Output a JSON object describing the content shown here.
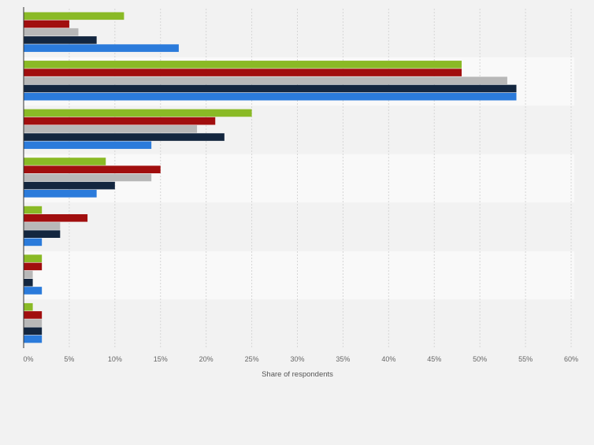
{
  "chart_data": {
    "type": "bar",
    "orientation": "horizontal",
    "xlabel": "Share of respondents",
    "xlim": [
      0,
      60
    ],
    "x_ticks": [
      "0%",
      "5%",
      "10%",
      "15%",
      "20%",
      "25%",
      "30%",
      "35%",
      "40%",
      "45%",
      "50%",
      "55%",
      "60%"
    ],
    "category_labels_visible": false,
    "groups": 7,
    "series": [
      {
        "color": "#8aba26",
        "values": [
          11,
          48,
          25,
          9,
          2,
          2,
          1
        ]
      },
      {
        "color": "#a10e0e",
        "values": [
          5,
          48,
          21,
          15,
          7,
          2,
          2
        ]
      },
      {
        "color": "#b8b8b8",
        "values": [
          6,
          53,
          19,
          14,
          4,
          1,
          2
        ]
      },
      {
        "color": "#13263f",
        "values": [
          8,
          54,
          22,
          10,
          4,
          1,
          2
        ]
      },
      {
        "color": "#2b7bdb",
        "values": [
          17,
          54,
          14,
          8,
          2,
          2,
          2
        ]
      }
    ],
    "grid": true,
    "legend": "none"
  }
}
